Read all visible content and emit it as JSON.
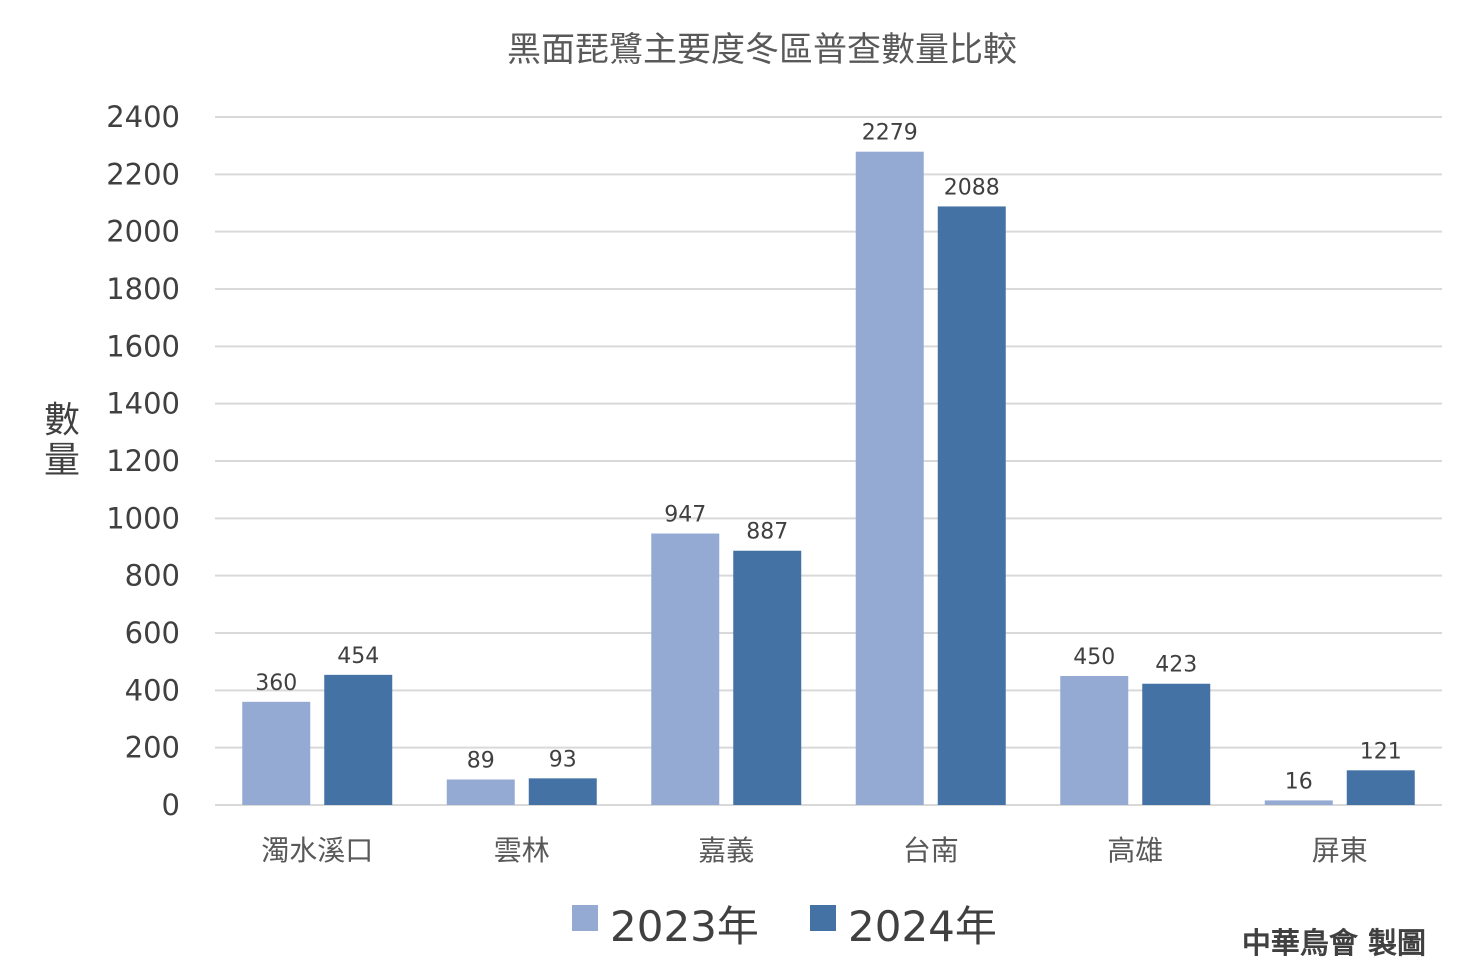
{
  "chart_data": {
    "type": "bar",
    "title": "黑面琵鷺主要度冬區普查數量比較",
    "ylabel": "數量",
    "xlabel": "",
    "categories": [
      "濁水溪口",
      "雲林",
      "嘉義",
      "台南",
      "高雄",
      "屏東"
    ],
    "series": [
      {
        "name": "2023年",
        "color": "#95aad2",
        "values": [
          360,
          89,
          947,
          2279,
          450,
          16
        ]
      },
      {
        "name": "2024年",
        "color": "#4472a5",
        "values": [
          454,
          93,
          887,
          2088,
          423,
          121
        ]
      }
    ],
    "ylim": [
      0,
      2400
    ],
    "yticks": [
      0,
      200,
      400,
      600,
      800,
      1000,
      1200,
      1400,
      1600,
      1800,
      2000,
      2200,
      2400
    ],
    "grid": true,
    "legend_position": "bottom"
  },
  "credit": "中華鳥會 製圖"
}
